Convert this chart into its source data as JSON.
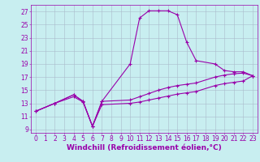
{
  "xlabel": "Windchill (Refroidissement éolien,°C)",
  "background_color": "#c8eef0",
  "line_color": "#9900aa",
  "grid_color": "#aabbcc",
  "xlim": [
    -0.5,
    23.5
  ],
  "ylim": [
    8.5,
    28.0
  ],
  "xticks": [
    0,
    1,
    2,
    3,
    4,
    5,
    6,
    7,
    8,
    9,
    10,
    11,
    12,
    13,
    14,
    15,
    16,
    17,
    18,
    19,
    20,
    21,
    22,
    23
  ],
  "yticks": [
    9,
    11,
    13,
    15,
    17,
    19,
    21,
    23,
    25,
    27
  ],
  "curve1_x": [
    0,
    2,
    4,
    5,
    6,
    7,
    10,
    11,
    12,
    13,
    14,
    15,
    16,
    17,
    19,
    20,
    21,
    22,
    23
  ],
  "curve1_y": [
    11.8,
    13.0,
    14.3,
    13.3,
    9.5,
    13.3,
    19.0,
    26.0,
    27.1,
    27.1,
    27.1,
    26.5,
    22.3,
    19.5,
    19.0,
    18.0,
    17.8,
    17.8,
    17.2
  ],
  "curve2_x": [
    0,
    2,
    4,
    5,
    6,
    7,
    10,
    11,
    12,
    13,
    14,
    15,
    16,
    17,
    19,
    20,
    21,
    22,
    23
  ],
  "curve2_y": [
    11.8,
    13.0,
    14.3,
    13.3,
    9.5,
    13.3,
    13.5,
    14.0,
    14.5,
    15.0,
    15.4,
    15.7,
    15.9,
    16.1,
    17.0,
    17.3,
    17.5,
    17.6,
    17.2
  ],
  "curve3_x": [
    0,
    2,
    4,
    5,
    6,
    7,
    10,
    11,
    12,
    13,
    14,
    15,
    16,
    17,
    19,
    20,
    21,
    22,
    23
  ],
  "curve3_y": [
    11.8,
    13.0,
    14.0,
    13.2,
    9.5,
    12.8,
    13.0,
    13.2,
    13.5,
    13.8,
    14.1,
    14.4,
    14.6,
    14.8,
    15.7,
    16.0,
    16.2,
    16.4,
    17.2
  ],
  "tick_fontsize": 5.5,
  "xlabel_fontsize": 6.5
}
